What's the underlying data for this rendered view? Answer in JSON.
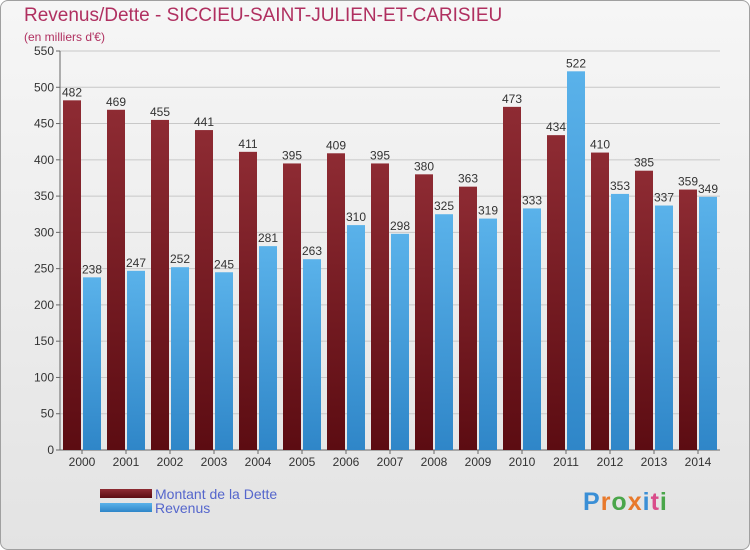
{
  "title": "Revenus/Dette - SICCIEU-SAINT-JULIEN-ET-CARISIEU",
  "subtitle": "(en milliers d'€)",
  "logo_text": "Proxiti",
  "colors": {
    "dette": "#7a1e26",
    "revenus": "#4aa3e0",
    "title": "#b03060",
    "legend": "#5566cc"
  },
  "chart_data": {
    "type": "bar",
    "title": "Revenus/Dette - SICCIEU-SAINT-JULIEN-ET-CARISIEU",
    "ylabel": "(en milliers d'€)",
    "xlabel": "",
    "ylim": [
      0,
      550
    ],
    "yticks": [
      0,
      50,
      100,
      150,
      200,
      250,
      300,
      350,
      400,
      450,
      500,
      550
    ],
    "grid": true,
    "legend_position": "bottom-left",
    "categories": [
      "2000",
      "2001",
      "2002",
      "2003",
      "2004",
      "2005",
      "2006",
      "2007",
      "2008",
      "2009",
      "2010",
      "2011",
      "2012",
      "2013",
      "2014"
    ],
    "series": [
      {
        "name": "Montant de la Dette",
        "values": [
          482,
          469,
          455,
          441,
          411,
          395,
          409,
          395,
          380,
          363,
          473,
          434,
          410,
          385,
          359
        ]
      },
      {
        "name": "Revenus",
        "values": [
          238,
          247,
          252,
          245,
          281,
          263,
          310,
          298,
          325,
          319,
          333,
          522,
          353,
          337,
          349
        ]
      }
    ]
  }
}
